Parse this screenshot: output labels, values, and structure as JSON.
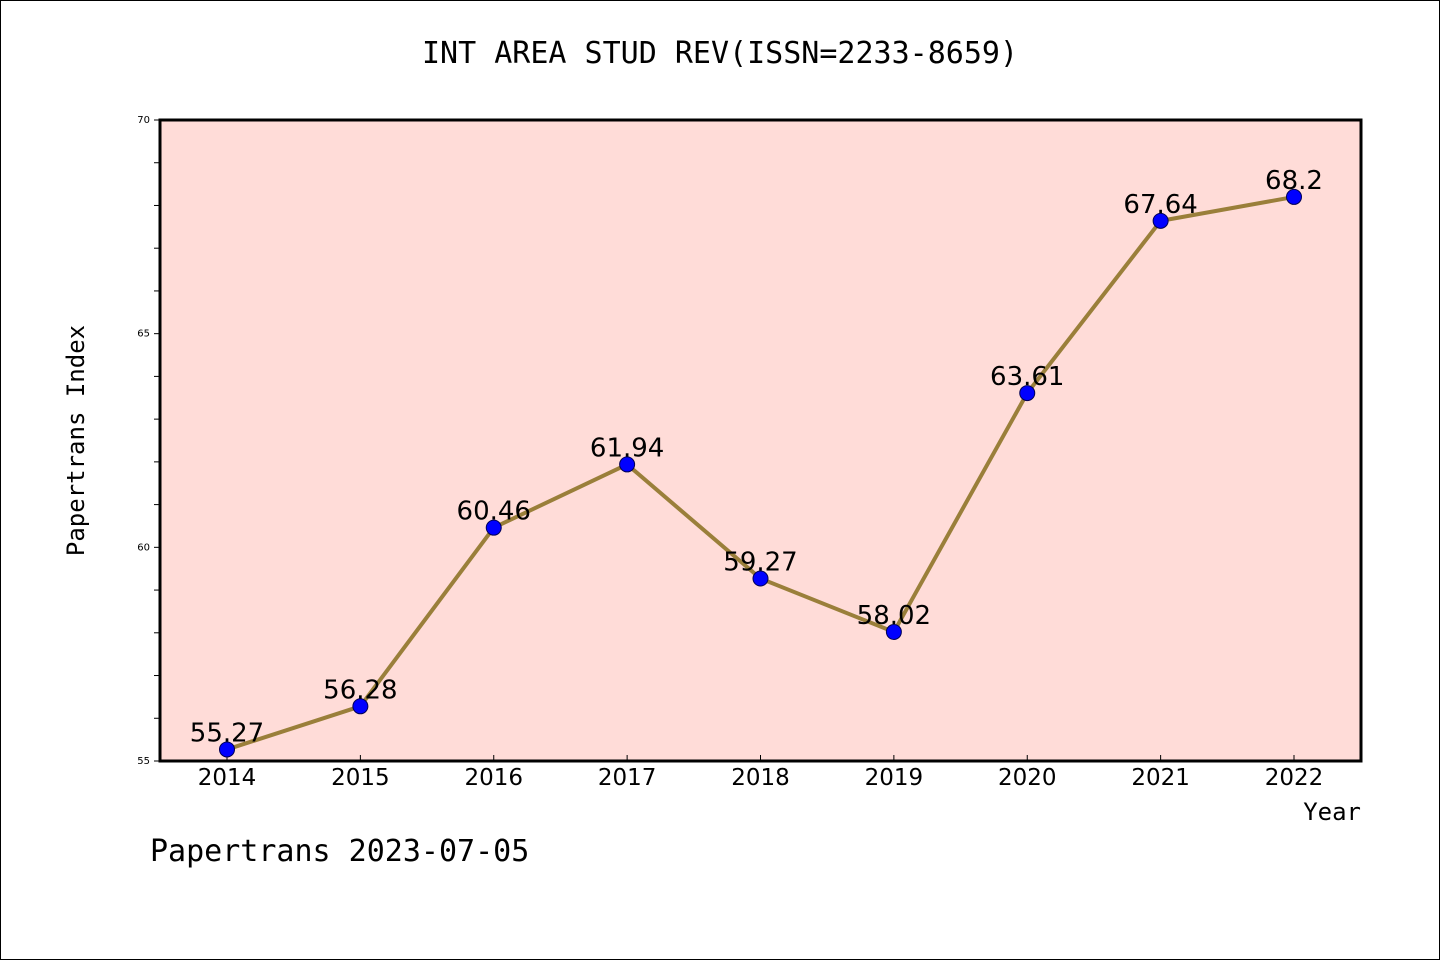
{
  "chart_data": {
    "type": "line",
    "title": "INT AREA STUD REV(ISSN=2233-8659)",
    "xlabel": "Year",
    "ylabel": "Papertrans Index",
    "x": [
      "2014",
      "2015",
      "2016",
      "2017",
      "2018",
      "2019",
      "2020",
      "2021",
      "2022"
    ],
    "series": [
      {
        "values": [
          55.27,
          56.28,
          60.46,
          61.94,
          59.27,
          58.02,
          63.61,
          67.64,
          68.2
        ],
        "labels": [
          "55.27",
          "56.28",
          "60.46",
          "61.94",
          "59.27",
          "58.02",
          "63.61",
          "67.64",
          "68.2"
        ]
      }
    ],
    "ylim": [
      55,
      70
    ],
    "yticks": [
      55,
      60,
      65,
      70
    ],
    "grid": false,
    "colors": {
      "plot_background": "#FFDCD8",
      "line": "#9A7F3A",
      "marker": "#0000FF"
    }
  },
  "footer": {
    "note": "Papertrans 2023-07-05"
  }
}
